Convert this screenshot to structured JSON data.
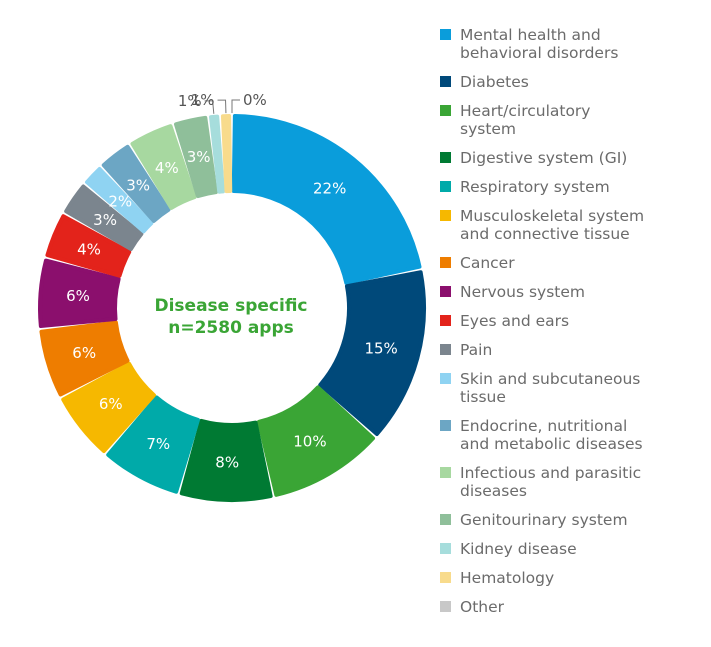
{
  "chart_data": {
    "type": "pie",
    "center_label": {
      "line1": "Disease specific",
      "line2": "n=2580 apps"
    },
    "slices": [
      {
        "label": "Mental health and behavioral disorders",
        "value": 22,
        "display": "22%",
        "color": "#0a9ddb"
      },
      {
        "label": "Diabetes",
        "value": 15,
        "display": "15%",
        "color": "#00497a"
      },
      {
        "label": "Heart/circulatory system",
        "value": 10,
        "display": "10%",
        "color": "#3aa535"
      },
      {
        "label": "Digestive system (GI)",
        "value": 8,
        "display": "8%",
        "color": "#007a33"
      },
      {
        "label": "Respiratory system",
        "value": 7,
        "display": "7%",
        "color": "#00aaa9"
      },
      {
        "label": "Musculoskeletal system and connective tissue",
        "value": 6,
        "display": "6%",
        "color": "#f6b800"
      },
      {
        "label": "Cancer",
        "value": 6,
        "display": "6%",
        "color": "#ee7d00"
      },
      {
        "label": "Nervous system",
        "value": 6,
        "display": "6%",
        "color": "#8b0f6d"
      },
      {
        "label": "Eyes and ears",
        "value": 4,
        "display": "4%",
        "color": "#e3231b"
      },
      {
        "label": "Pain",
        "value": 3,
        "display": "3%",
        "color": "#7b858e"
      },
      {
        "label": "Skin and subcutaneous tissue",
        "value": 2,
        "display": "2%",
        "color": "#8fd3f2"
      },
      {
        "label": "Endocrine, nutritional and metabolic diseases",
        "value": 3,
        "display": "3%",
        "color": "#6ca6c4"
      },
      {
        "label": "Infectious and parasitic diseases",
        "value": 4,
        "display": "4%",
        "color": "#a7d8a0"
      },
      {
        "label": "Genitourinary system",
        "value": 3,
        "display": "3%",
        "color": "#8fbf9a"
      },
      {
        "label": "Kidney disease",
        "value": 1,
        "display": "1%",
        "color": "#a6dddc"
      },
      {
        "label": "Hematology",
        "value": 1,
        "display": "1%",
        "color": "#f8db8c"
      },
      {
        "label": "Other",
        "value": 0,
        "display": "0%",
        "color": "#c8c8c8"
      }
    ],
    "legend": [
      {
        "label": "Mental health and\nbehavioral disorders",
        "color": "#0a9ddb"
      },
      {
        "label": "Diabetes",
        "color": "#00497a"
      },
      {
        "label": "Heart/circulatory\nsystem",
        "color": "#3aa535"
      },
      {
        "label": "Digestive system (GI)",
        "color": "#007a33"
      },
      {
        "label": "Respiratory system",
        "color": "#00aaa9"
      },
      {
        "label": "Musculoskeletal system\nand connective tissue",
        "color": "#f6b800"
      },
      {
        "label": "Cancer",
        "color": "#ee7d00"
      },
      {
        "label": "Nervous system",
        "color": "#8b0f6d"
      },
      {
        "label": "Eyes and ears",
        "color": "#e3231b"
      },
      {
        "label": "Pain",
        "color": "#7b858e"
      },
      {
        "label": "Skin and subcutaneous\ntissue",
        "color": "#8fd3f2"
      },
      {
        "label": "Endocrine, nutritional\nand metabolic diseases",
        "color": "#6ca6c4"
      },
      {
        "label": "Infectious and parasitic\ndiseases",
        "color": "#a7d8a0"
      },
      {
        "label": "Genitourinary system",
        "color": "#8fbf9a"
      },
      {
        "label": "Kidney disease",
        "color": "#a6dddc"
      },
      {
        "label": "Hematology",
        "color": "#f8db8c"
      },
      {
        "label": "Other",
        "color": "#c8c8c8"
      }
    ]
  }
}
